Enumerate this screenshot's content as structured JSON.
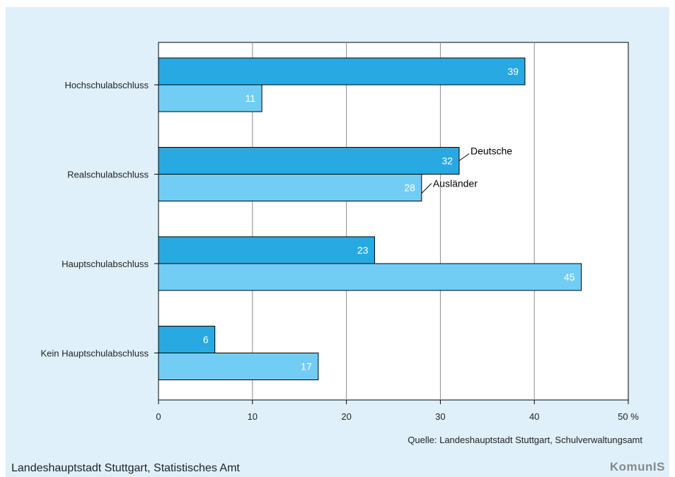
{
  "chart_data": {
    "type": "bar",
    "orientation": "horizontal",
    "categories": [
      "Hochschulabschluss",
      "Realschulabschluss",
      "Hauptschulabschluss",
      "Kein Hauptschulabschluss"
    ],
    "series": [
      {
        "name": "Deutsche",
        "values": [
          39,
          32,
          23,
          6
        ],
        "color": "#29a9e1"
      },
      {
        "name": "Ausländer",
        "values": [
          11,
          28,
          45,
          17
        ],
        "color": "#72cdf4"
      }
    ],
    "xlim": [
      0,
      50
    ],
    "xticks": [
      "0",
      "10",
      "20",
      "30",
      "40",
      "50 %"
    ],
    "grid": true,
    "legend": "annotated on Realschulabschluss bars"
  },
  "source": "Quelle: Landeshauptstadt Stuttgart, Schulverwaltungsamt",
  "footer": {
    "publisher": "Landeshauptstadt Stuttgart, Statistisches Amt",
    "logo": "KomunIS"
  },
  "colors": {
    "background": "#dff0fa",
    "plot_background": "#ffffff",
    "grid": "#8c8c8c"
  }
}
